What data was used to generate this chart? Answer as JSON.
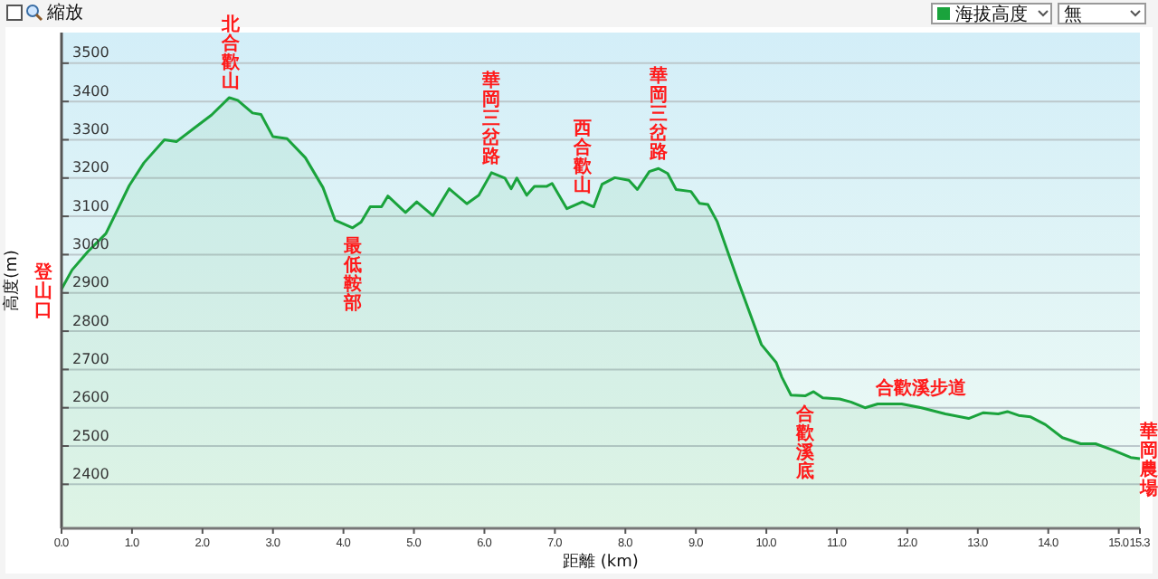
{
  "chart_data": {
    "type": "area",
    "xlabel": "距離 (km)",
    "ylabel": "高度(m)",
    "legend": "top right",
    "grid": "y",
    "xlim": [
      0,
      15.3
    ],
    "ylim": [
      2285,
      3580
    ],
    "xticks": [
      {
        "value": 0,
        "label": "0.0"
      },
      {
        "value": 1,
        "label": "1.0"
      },
      {
        "value": 2,
        "label": "2.0"
      },
      {
        "value": 3,
        "label": "3.0"
      },
      {
        "value": 4,
        "label": "4.0"
      },
      {
        "value": 5,
        "label": "5.0"
      },
      {
        "value": 6,
        "label": "6.0"
      },
      {
        "value": 7,
        "label": "7.0"
      },
      {
        "value": 8,
        "label": "8.0"
      },
      {
        "value": 9,
        "label": "9.0"
      },
      {
        "value": 10,
        "label": "10.0"
      },
      {
        "value": 11,
        "label": "11.0"
      },
      {
        "value": 12,
        "label": "12.0"
      },
      {
        "value": 13,
        "label": "13.0"
      },
      {
        "value": 14,
        "label": "14.0"
      },
      {
        "value": 15,
        "label": "15.0"
      },
      15.3
    ],
    "yticks": [
      2400,
      2500,
      2600,
      2700,
      2800,
      2900,
      3000,
      3100,
      3200,
      3300,
      3400,
      3500
    ],
    "x": [
      0,
      0.15,
      0.375,
      0.63,
      0.96,
      1.17,
      1.46,
      1.63,
      1.88,
      2.13,
      2.38,
      2.5,
      2.71,
      2.83,
      3.0,
      3.2,
      3.46,
      3.71,
      3.88,
      4.13,
      4.25,
      4.38,
      4.54,
      4.63,
      4.88,
      5.04,
      5.27,
      5.5,
      5.75,
      5.92,
      6.1,
      6.29,
      6.38,
      6.46,
      6.6,
      6.71,
      6.88,
      6.96,
      7.17,
      7.39,
      7.55,
      7.67,
      7.85,
      8.05,
      8.17,
      8.34,
      8.47,
      8.6,
      8.72,
      8.93,
      9.05,
      9.17,
      9.3,
      9.6,
      9.93,
      10.14,
      10.22,
      10.35,
      10.55,
      10.67,
      10.8,
      11.04,
      11.2,
      11.4,
      11.58,
      11.92,
      12.2,
      12.54,
      12.87,
      13.08,
      13.29,
      13.42,
      13.58,
      13.75,
      13.96,
      14.2,
      14.46,
      14.67,
      14.92,
      15.17,
      15.3
    ],
    "series": [
      {
        "name": "海拔高度",
        "color": "#1aa33c",
        "values": [
          2910,
          2960,
          3008,
          3055,
          3180,
          3240,
          3300,
          3295,
          3330,
          3365,
          3410,
          3403,
          3370,
          3366,
          3308,
          3303,
          3253,
          3175,
          3090,
          3070,
          3085,
          3125,
          3125,
          3153,
          3110,
          3138,
          3102,
          3172,
          3133,
          3155,
          3214,
          3200,
          3172,
          3200,
          3155,
          3178,
          3178,
          3186,
          3120,
          3138,
          3125,
          3184,
          3201,
          3194,
          3170,
          3217,
          3225,
          3212,
          3170,
          3165,
          3134,
          3131,
          3087,
          2930,
          2765,
          2718,
          2680,
          2633,
          2631,
          2642,
          2626,
          2623,
          2615,
          2600,
          2610,
          2610,
          2600,
          2584,
          2572,
          2587,
          2584,
          2590,
          2580,
          2576,
          2556,
          2522,
          2506,
          2506,
          2489,
          2470,
          2467
        ]
      }
    ],
    "annotations": [
      "縮放",
      "無",
      {
        "text": "登山口",
        "x": 0,
        "y": 2910
      },
      {
        "text": "北合歡山",
        "x": 2.4,
        "y": 3410
      },
      {
        "text": "最低鞍部",
        "x": 4.13,
        "y": 3070
      },
      {
        "text": "華岡三岔路",
        "x": 6.1,
        "y": 3214
      },
      {
        "text": "西合歡山",
        "x": 7.39,
        "y": 3138
      },
      {
        "text": "華岡三岔路",
        "x": 8.47,
        "y": 3225
      },
      {
        "text": "合歡溪底",
        "x": 10.55,
        "y": 2631
      },
      {
        "text": "合歡溪步道",
        "x": 12.2,
        "y": 2600
      },
      {
        "text": "華岡農場",
        "x": 15.3,
        "y": 2467
      }
    ]
  }
}
